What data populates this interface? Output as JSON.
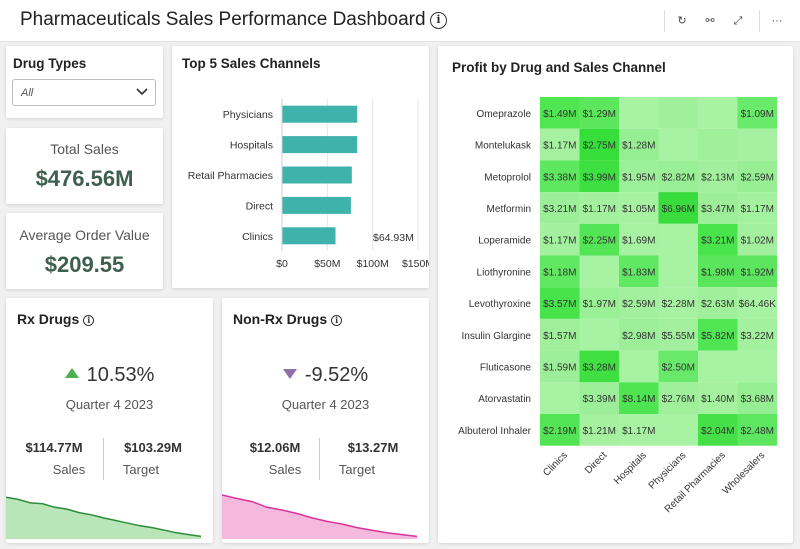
{
  "header": {
    "title": "Pharmaceuticals Sales Performance Dashboard",
    "info_icon": "info-icon",
    "buttons": [
      {
        "name": "refresh",
        "icon": "refresh-icon",
        "glyph": "↻"
      },
      {
        "name": "view",
        "icon": "glasses-icon",
        "glyph": "⚯"
      },
      {
        "name": "expand",
        "icon": "expand-icon",
        "glyph": "⤢"
      },
      {
        "name": "more",
        "icon": "more-icon",
        "glyph": "···"
      }
    ]
  },
  "filter": {
    "title": "Drug Types",
    "selected": "All"
  },
  "kpis": {
    "total_sales_label": "Total Sales",
    "total_sales_value": "$476.56M",
    "aov_label": "Average Order Value",
    "aov_value": "$209.55"
  },
  "top_channels": {
    "title": "Top 5 Sales Channels",
    "overflow_label": "$64.93M"
  },
  "heatmap": {
    "title": "Profit by Drug and Sales Channel",
    "rows": [
      "Omeprazole",
      "Montelukask",
      "Metoprolol",
      "Metformin",
      "Loperamide",
      "Liothyronine",
      "Levothyroxine",
      "Insulin Glargine",
      "Fluticasone",
      "Atorvastatin",
      "Albuterol Inhaler"
    ],
    "columns": [
      "Clinics",
      "Direct",
      "Hospitals",
      "Physicians",
      "Retail Pharmacies",
      "Wholesalers"
    ],
    "cells": [
      [
        "$1.49M",
        "$1.29M",
        "",
        "",
        "",
        "$1.09M"
      ],
      [
        "$1.17M",
        "$2.75M",
        "$1.28M",
        "",
        "",
        ""
      ],
      [
        "$3.38M",
        "$3.99M",
        "$1.95M",
        "$2.82M",
        "$2.13M",
        "$2.59M"
      ],
      [
        "$3.21M",
        "$1.17M",
        "$1.05M",
        "$6.96M",
        "$3.47M",
        "$1.17M"
      ],
      [
        "$1.17M",
        "$2.25M",
        "$1.69M",
        "",
        "$3.21M",
        "$1.02M"
      ],
      [
        "$1.18M",
        "",
        "$1.83M",
        "",
        "$1.98M",
        "$1.92M"
      ],
      [
        "$3.57M",
        "$1.97M",
        "$2.59M",
        "$2.28M",
        "$2.63M",
        "$64.46K"
      ],
      [
        "$1.57M",
        "",
        "$2.98M",
        "$5.55M",
        "$5.82M",
        "$3.22M"
      ],
      [
        "$1.59M",
        "$3.28M",
        "",
        "$2.50M",
        "",
        ""
      ],
      [
        "",
        "$3.39M",
        "$8.14M",
        "$2.76M",
        "$1.40M",
        "$3.68M"
      ],
      [
        "$2.19M",
        "$1.21M",
        "$1.17M",
        "",
        "$2.04M",
        "$2.48M"
      ]
    ],
    "colors": [
      [
        "#50e652",
        "#5be65c",
        "#a8f2a3",
        "#a0f09b",
        "#a8f2a3",
        "#69ea6a"
      ],
      [
        "#a5f1a0",
        "#36de3a",
        "#96ee92",
        "#a8f2a3",
        "#a0f09b",
        "#a6f1a1"
      ],
      [
        "#5ee85f",
        "#3edf41",
        "#9df09a",
        "#98ef95",
        "#a2f09e",
        "#97ee93"
      ],
      [
        "#9cef98",
        "#a3f19f",
        "#a6f1a2",
        "#38dc3c",
        "#9cef98",
        "#a4f1a0"
      ],
      [
        "#a3f19f",
        "#54e556",
        "#a6f1a2",
        "#a8f2a3",
        "#49e34c",
        "#a2f09e"
      ],
      [
        "#61e862",
        "#a8f2a3",
        "#60e862",
        "#a8f2a3",
        "#5ae55c",
        "#5ee55f"
      ],
      [
        "#48e24b",
        "#9af095",
        "#a2f09e",
        "#a6f1a2",
        "#a0f09b",
        "#a8f2a3"
      ],
      [
        "#9fef9b",
        "#a8f2a3",
        "#9cef98",
        "#a2f09e",
        "#50e552",
        "#a3f19f"
      ],
      [
        "#9cef98",
        "#40e043",
        "#a8f2a3",
        "#68e96a",
        "#a8f2a3",
        "#a8f2a3"
      ],
      [
        "#a8f2a3",
        "#9cef98",
        "#4fe452",
        "#a0f09b",
        "#a5f1a0",
        "#95ee91"
      ],
      [
        "#52e454",
        "#a5f1a0",
        "#a8f2a3",
        "#a8f2a3",
        "#45e048",
        "#5de65f"
      ]
    ]
  },
  "rx": {
    "title": "Rx Drugs",
    "pct": "10.53%",
    "quarter": "Quarter 4 2023",
    "sales_value": "$114.77M",
    "sales_label": "Sales",
    "target_value": "$103.29M",
    "target_label": "Target",
    "line_color": "#2e8b3a",
    "fill_color": "#b9e6b9"
  },
  "nonrx": {
    "title": "Non-Rx Drugs",
    "pct": "-9.52%",
    "quarter": "Quarter 4 2023",
    "sales_value": "$12.06M",
    "sales_label": "Sales",
    "target_value": "$13.27M",
    "target_label": "Target",
    "line_color": "#d6359a",
    "fill_color": "#f6b9dd"
  },
  "chart_data": [
    {
      "type": "bar",
      "orientation": "horizontal",
      "title": "Top 5 Sales Channels",
      "categories": [
        "Physicians",
        "Hospitals",
        "Retail Pharmacies",
        "Direct",
        "Clinics"
      ],
      "values": [
        83,
        83,
        77,
        76,
        59
      ],
      "xticks": [
        "$0",
        "$50M",
        "$100M",
        "$150M"
      ],
      "xlim": [
        0,
        150
      ],
      "color": "#3fb2ab"
    },
    {
      "type": "area",
      "title": "Rx Drugs trend",
      "values": [
        0.95,
        0.9,
        0.82,
        0.8,
        0.72,
        0.68,
        0.6,
        0.55,
        0.48,
        0.42,
        0.36,
        0.3,
        0.26,
        0.2,
        0.14,
        0.1,
        0.06
      ]
    },
    {
      "type": "area",
      "title": "Non-Rx Drugs trend",
      "values": [
        1.0,
        0.92,
        0.85,
        0.72,
        0.66,
        0.58,
        0.48,
        0.4,
        0.34,
        0.26,
        0.2,
        0.14,
        0.1,
        0.06
      ]
    }
  ]
}
